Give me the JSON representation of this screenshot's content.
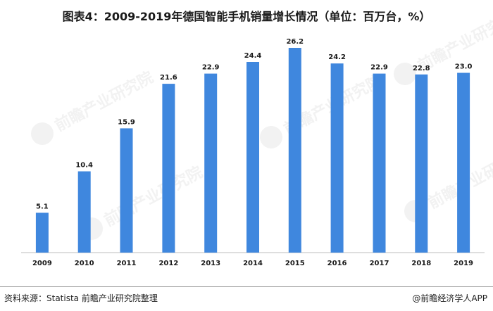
{
  "title": "图表4：2009-2019年德国智能手机销量增长情况（单位：百万台，%）",
  "chart_data": {
    "type": "bar",
    "categories": [
      "2009",
      "2010",
      "2011",
      "2012",
      "2013",
      "2014",
      "2015",
      "2016",
      "2017",
      "2018",
      "2019"
    ],
    "values": [
      5.1,
      10.4,
      15.9,
      21.6,
      22.9,
      24.4,
      26.2,
      24.2,
      22.9,
      22.8,
      23.0
    ],
    "value_labels": [
      "5.1",
      "10.4",
      "15.9",
      "21.6",
      "22.9",
      "24.4",
      "26.2",
      "24.2",
      "22.9",
      "22.8",
      "23.0"
    ],
    "ylim": [
      0,
      28
    ],
    "bar_color": "#3f87de",
    "grid": false,
    "legend": "none"
  },
  "watermark": {
    "text": "前瞻产业研究院"
  },
  "footer": {
    "source": "资料来源：Statista  前瞻产业研究院整理",
    "brand": "@前瞻经济学人APP"
  }
}
